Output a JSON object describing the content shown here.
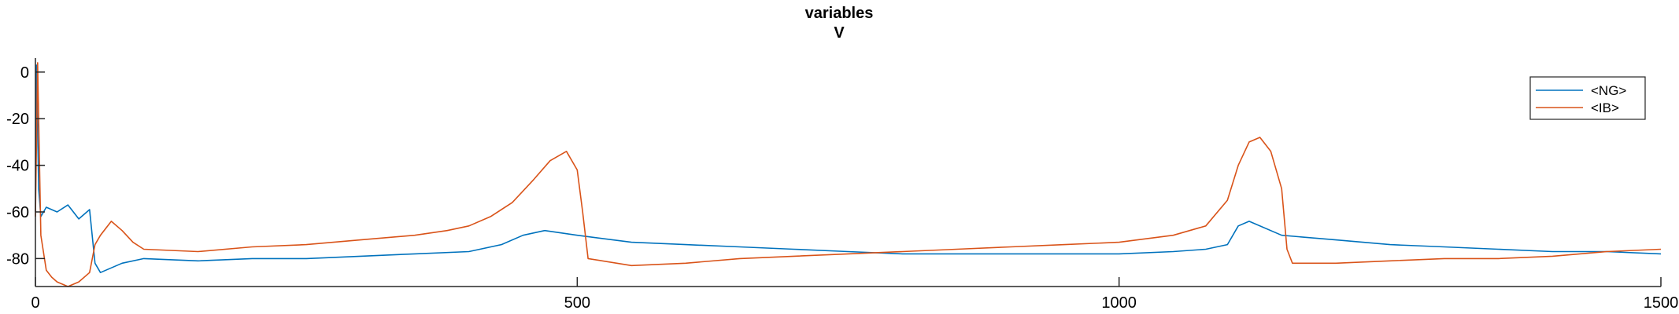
{
  "chart_data": {
    "type": "line",
    "title": "variables",
    "subtitle": "V",
    "xlabel": "",
    "ylabel": "",
    "xlim": [
      0,
      1500
    ],
    "ylim": [
      -92,
      6
    ],
    "xticks": [
      0,
      500,
      1000,
      1500
    ],
    "yticks": [
      0,
      -20,
      -40,
      -60,
      -80
    ],
    "grid": false,
    "legend_position": "top-right",
    "series": [
      {
        "name": "<NG>",
        "color": "#0072BD",
        "x": [
          0,
          1,
          3,
          5,
          10,
          20,
          30,
          40,
          50,
          55,
          60,
          80,
          100,
          150,
          200,
          250,
          300,
          350,
          400,
          430,
          450,
          470,
          500,
          550,
          600,
          650,
          700,
          750,
          800,
          850,
          900,
          950,
          1000,
          1050,
          1080,
          1100,
          1110,
          1120,
          1150,
          1200,
          1250,
          1300,
          1350,
          1400,
          1450,
          1500
        ],
        "y": [
          -60,
          3,
          -50,
          -62,
          -58,
          -60,
          -57,
          -63,
          -59,
          -82,
          -86,
          -82,
          -80,
          -81,
          -80,
          -80,
          -79,
          -78,
          -77,
          -74,
          -70,
          -68,
          -70,
          -73,
          -74,
          -75,
          -76,
          -77,
          -78,
          -78,
          -78,
          -78,
          -78,
          -77,
          -76,
          -74,
          -66,
          -64,
          -70,
          -72,
          -74,
          -75,
          -76,
          -77,
          -77,
          -78
        ]
      },
      {
        "name": "<IB>",
        "color": "#D95319",
        "x": [
          0,
          2,
          5,
          10,
          15,
          20,
          30,
          40,
          50,
          55,
          60,
          70,
          80,
          90,
          100,
          150,
          200,
          250,
          300,
          350,
          380,
          400,
          420,
          440,
          460,
          475,
          490,
          500,
          505,
          510,
          550,
          600,
          650,
          700,
          750,
          800,
          850,
          900,
          950,
          1000,
          1050,
          1080,
          1100,
          1110,
          1120,
          1130,
          1140,
          1150,
          1155,
          1160,
          1200,
          1250,
          1300,
          1350,
          1400,
          1450,
          1500
        ],
        "y": [
          -62,
          4,
          -70,
          -85,
          -88,
          -90,
          -92,
          -90,
          -86,
          -74,
          -70,
          -64,
          -68,
          -73,
          -76,
          -77,
          -75,
          -74,
          -72,
          -70,
          -68,
          -66,
          -62,
          -56,
          -46,
          -38,
          -34,
          -42,
          -60,
          -80,
          -83,
          -82,
          -80,
          -79,
          -78,
          -77,
          -76,
          -75,
          -74,
          -73,
          -70,
          -66,
          -55,
          -40,
          -30,
          -28,
          -34,
          -50,
          -76,
          -82,
          -82,
          -81,
          -80,
          -80,
          -79,
          -77,
          -76
        ]
      }
    ]
  }
}
